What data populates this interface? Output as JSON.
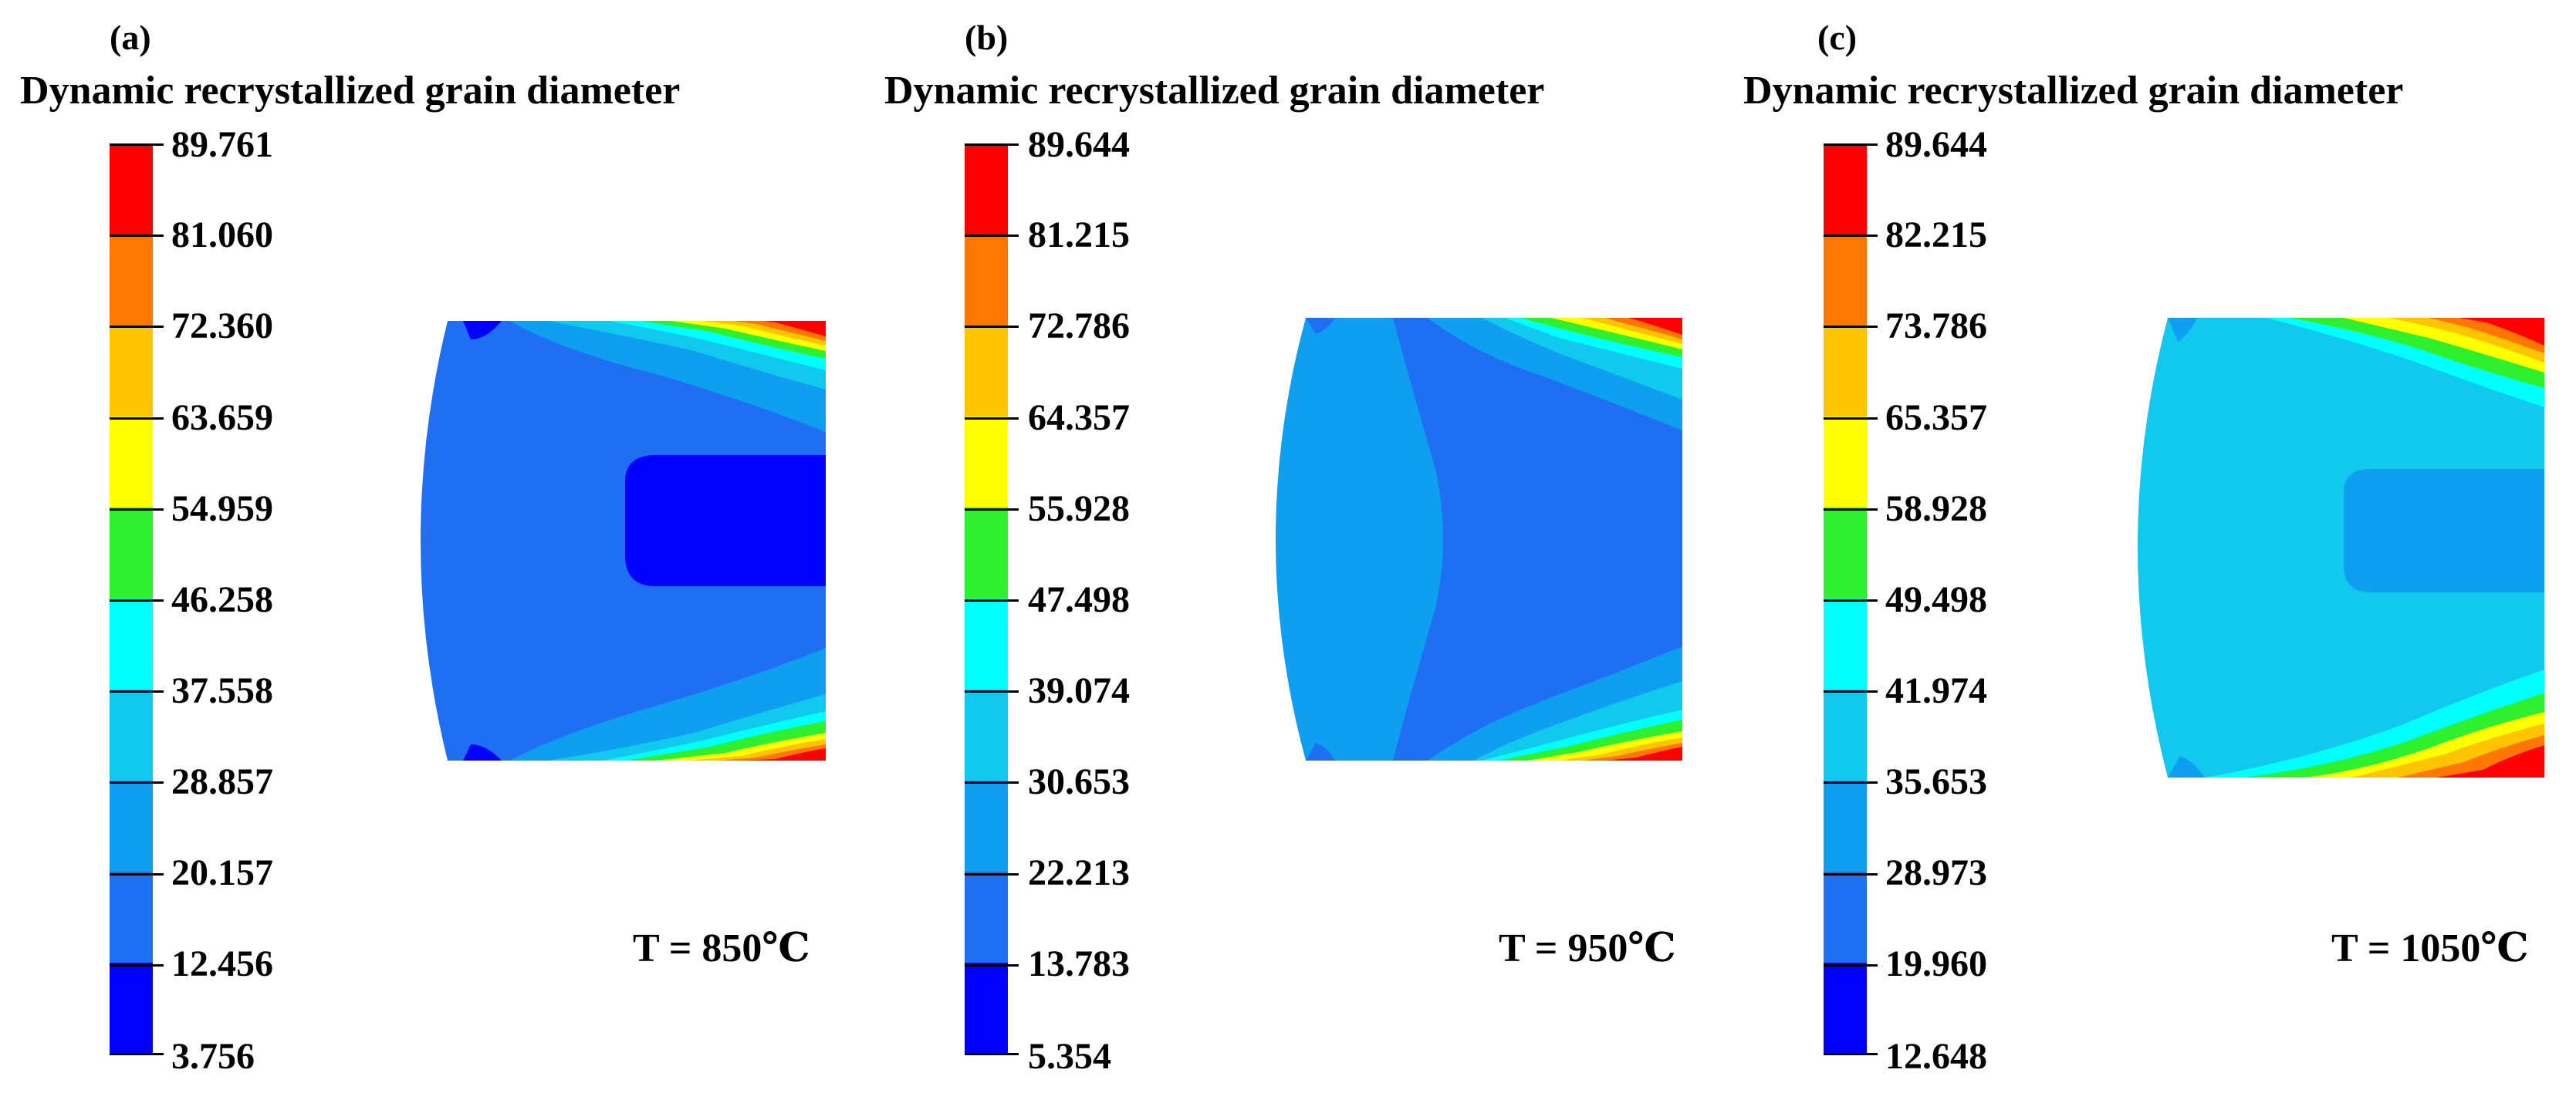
{
  "panels": [
    {
      "label": "(a)",
      "title": "Dynamic recrystallized grain diameter",
      "temperature": "T = 850℃",
      "legend_values": [
        "89.761",
        "81.060",
        "72.360",
        "63.659",
        "54.959",
        "46.258",
        "37.558",
        "28.857",
        "20.157",
        "12.456",
        "3.756"
      ]
    },
    {
      "label": "(b)",
      "title": "Dynamic recrystallized grain diameter",
      "temperature": "T = 950℃",
      "legend_values": [
        "89.644",
        "81.215",
        "72.786",
        "64.357",
        "55.928",
        "47.498",
        "39.074",
        "30.653",
        "22.213",
        "13.783",
        "5.354"
      ]
    },
    {
      "label": "(c)",
      "title": "Dynamic recrystallized grain diameter",
      "temperature": "T = 1050℃",
      "legend_values": [
        "89.644",
        "82.215",
        "73.786",
        "65.357",
        "58.928",
        "49.498",
        "41.974",
        "35.653",
        "28.973",
        "19.960",
        "12.648"
      ]
    }
  ],
  "colormap": [
    "#ff0000",
    "#ff7700",
    "#ffc400",
    "#ffff00",
    "#2ef02e",
    "#00ffff",
    "#11c8ee",
    "#0f9ff0",
    "#1f6ff2",
    "#0000ff"
  ]
}
